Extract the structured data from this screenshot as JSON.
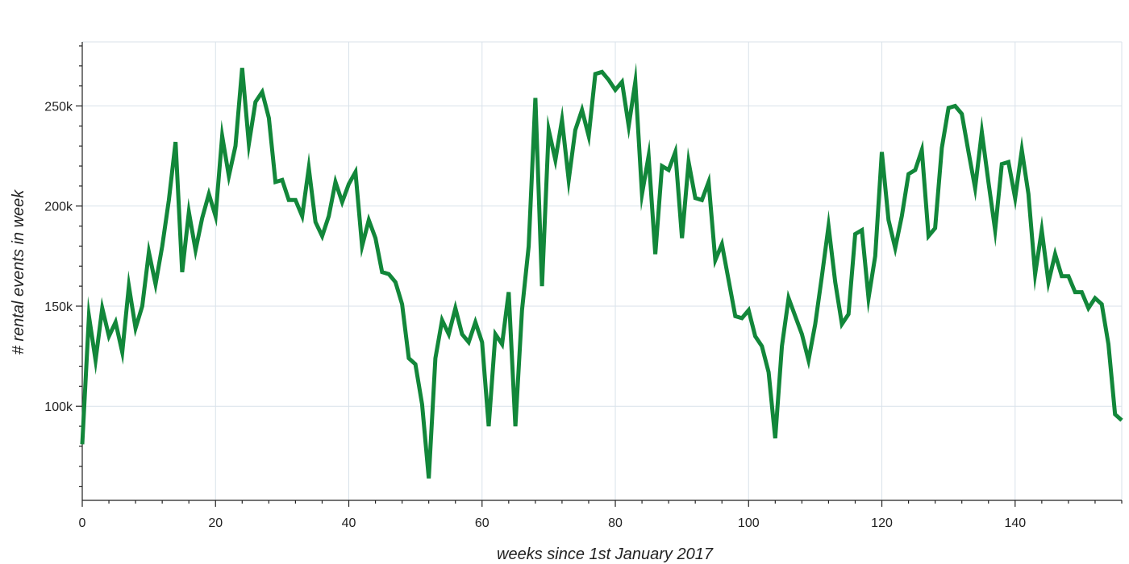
{
  "chart_data": {
    "type": "line",
    "xlabel": "weeks since 1st January 2017",
    "ylabel": "# rental events in week",
    "xlim": [
      0,
      156
    ],
    "ylim": [
      53000,
      282000
    ],
    "x_ticks": [
      0,
      20,
      40,
      60,
      80,
      100,
      120,
      140
    ],
    "x_tick_labels": [
      "0",
      "20",
      "40",
      "60",
      "80",
      "100",
      "120",
      "140"
    ],
    "y_ticks": [
      100000,
      150000,
      200000,
      250000
    ],
    "y_tick_labels": [
      "100k",
      "150k",
      "200k",
      "250k"
    ],
    "grid": true,
    "line_color": "#12873a",
    "series": [
      {
        "x": [
          0,
          1,
          2,
          3,
          4,
          5,
          6,
          7,
          8,
          9,
          10,
          11,
          12,
          13,
          14,
          15,
          16,
          17,
          18,
          19,
          20,
          21,
          22,
          23,
          24,
          25,
          26,
          27,
          28,
          29,
          30,
          31,
          32,
          33,
          34,
          35,
          36,
          37,
          38,
          39,
          40,
          41,
          42,
          43,
          44,
          45,
          46,
          47,
          48,
          49,
          50,
          51,
          52,
          53,
          54,
          55,
          56,
          57,
          58,
          59,
          60,
          61,
          62,
          63,
          64,
          65,
          66,
          67,
          68,
          69,
          70,
          71,
          72,
          73,
          74,
          75,
          76,
          77,
          78,
          79,
          80,
          81,
          82,
          83,
          84,
          85,
          86,
          87,
          88,
          89,
          90,
          91,
          92,
          93,
          94,
          95,
          96,
          97,
          98,
          99,
          100,
          101,
          102,
          103,
          104,
          105,
          106,
          107,
          108,
          109,
          110,
          111,
          112,
          113,
          114,
          115,
          116,
          117,
          118,
          119,
          120,
          121,
          122,
          123,
          124,
          125,
          126,
          127,
          128,
          129,
          130,
          131,
          132,
          133,
          134,
          135,
          136,
          137,
          138,
          139,
          140,
          141,
          142,
          143,
          144,
          145,
          146,
          147,
          148,
          149,
          150,
          151,
          152,
          153,
          154,
          155,
          156
        ],
        "y": [
          81000,
          145000,
          123000,
          149000,
          135000,
          142000,
          127000,
          160000,
          139000,
          150000,
          177000,
          161000,
          180000,
          203000,
          232000,
          167000,
          197000,
          178000,
          194000,
          206000,
          195000,
          235000,
          215000,
          230000,
          269000,
          231000,
          252000,
          257000,
          244000,
          212000,
          213000,
          203000,
          203000,
          195000,
          219000,
          192000,
          185000,
          195000,
          212000,
          202000,
          211000,
          217000,
          180000,
          193000,
          184000,
          167000,
          166000,
          162000,
          151000,
          124000,
          121000,
          101000,
          64000,
          124000,
          143000,
          136000,
          149000,
          136000,
          132000,
          142000,
          132000,
          90000,
          136000,
          131000,
          157000,
          90000,
          148000,
          180000,
          254000,
          160000,
          238000,
          223000,
          243000,
          213000,
          238000,
          248000,
          235000,
          266000,
          267000,
          263000,
          258000,
          262000,
          240000,
          262000,
          206000,
          225000,
          176000,
          220000,
          218000,
          227000,
          184000,
          222000,
          204000,
          203000,
          212000,
          173000,
          181000,
          163000,
          145000,
          144000,
          148000,
          135000,
          130000,
          117000,
          84000,
          130000,
          154000,
          145000,
          136000,
          123000,
          141000,
          165000,
          190000,
          162000,
          141000,
          146000,
          186000,
          188000,
          154000,
          175000,
          227000,
          193000,
          179000,
          195000,
          216000,
          218000,
          228000,
          185000,
          189000,
          229000,
          249000,
          250000,
          246000,
          227000,
          209000,
          237000,
          212000,
          188000,
          221000,
          222000,
          204000,
          228000,
          206000,
          166000,
          188000,
          162000,
          176000,
          165000,
          165000,
          157000,
          157000,
          149000,
          154000,
          151000,
          131000,
          96000,
          93000
        ]
      }
    ]
  }
}
